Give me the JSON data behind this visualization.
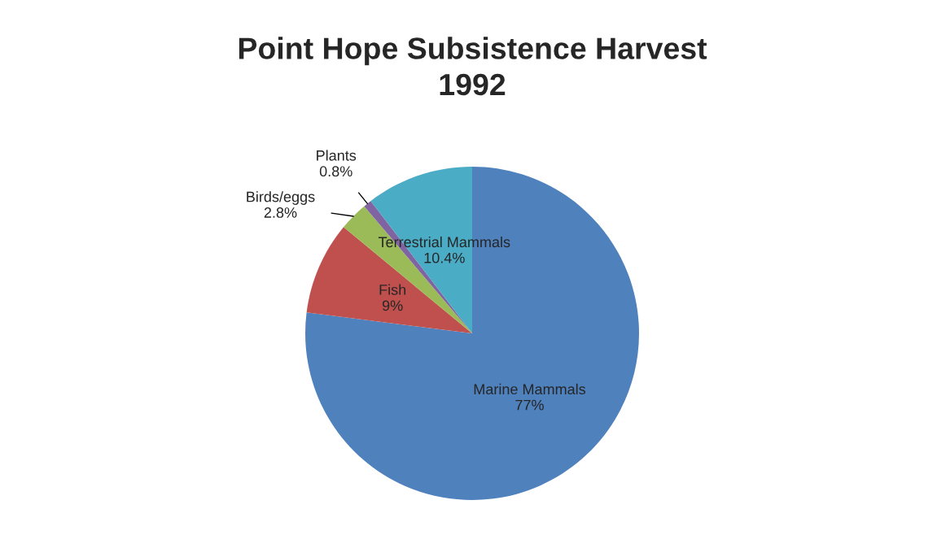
{
  "chart_data": {
    "type": "pie",
    "title": "Point Hope Subsistence Harvest\n1992",
    "categories": [
      "Marine Mammals",
      "Fish",
      "Birds/eggs",
      "Plants",
      "Terrestrial Mammals"
    ],
    "values": [
      77,
      9,
      2.8,
      0.8,
      10.4
    ],
    "value_labels": [
      "77%",
      "9%",
      "2.8%",
      "0.8%",
      "10.4%"
    ],
    "colors": [
      "#4f81bd",
      "#c0504d",
      "#9bbb59",
      "#8064a2",
      "#4bacc6"
    ],
    "legend": false
  }
}
